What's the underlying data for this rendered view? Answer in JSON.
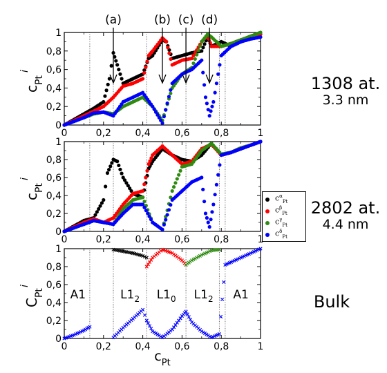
{
  "chart_data": [
    {
      "type": "scatter",
      "panel": "nanoparticle_1308",
      "ylabel": "c^i_Pt",
      "xlim": [
        0,
        1
      ],
      "ylim": [
        0,
        1
      ],
      "xticks": [
        "0",
        "0,2",
        "0,4",
        "0,6",
        "0,8",
        "1"
      ],
      "yticks": [
        "0",
        "0,2",
        "0,4",
        "0,6",
        "0,8",
        "1"
      ],
      "annotations": [
        "(a)",
        "(b)",
        "(c)",
        "(d)"
      ],
      "annotation_x": [
        0.25,
        0.5,
        0.62,
        0.74
      ],
      "side_label": [
        "1308 at.",
        "3.3 nm"
      ],
      "series": [
        {
          "name": "α",
          "color": "#000000",
          "x": [
            0.0,
            0.05,
            0.1,
            0.15,
            0.2,
            0.23,
            0.25,
            0.27,
            0.3,
            0.35,
            0.4,
            0.43,
            0.45,
            0.5,
            0.52,
            0.55,
            0.6,
            0.65,
            0.7,
            0.73,
            0.75,
            0.8,
            0.85,
            0.9,
            0.95,
            1.0
          ],
          "y": [
            0.0,
            0.06,
            0.12,
            0.18,
            0.25,
            0.5,
            0.78,
            0.65,
            0.45,
            0.5,
            0.55,
            0.72,
            0.75,
            0.92,
            0.9,
            0.72,
            0.75,
            0.78,
            0.8,
            0.95,
            0.85,
            0.9,
            0.85,
            0.9,
            0.95,
            0.98
          ]
        },
        {
          "name": "β",
          "color": "#ff0000",
          "x": [
            0.0,
            0.05,
            0.1,
            0.15,
            0.2,
            0.25,
            0.3,
            0.35,
            0.4,
            0.43,
            0.45,
            0.5,
            0.52,
            0.55,
            0.6,
            0.65,
            0.7,
            0.73,
            0.75,
            0.8,
            0.85,
            0.9,
            0.95,
            1.0
          ],
          "y": [
            0.0,
            0.05,
            0.1,
            0.15,
            0.2,
            0.3,
            0.42,
            0.45,
            0.5,
            0.75,
            0.8,
            0.94,
            0.9,
            0.65,
            0.7,
            0.72,
            0.9,
            0.97,
            0.85,
            0.85,
            0.88,
            0.92,
            0.95,
            0.98
          ]
        },
        {
          "name": "γ",
          "color": "#2e8b10",
          "x": [
            0.0,
            0.05,
            0.1,
            0.15,
            0.2,
            0.25,
            0.3,
            0.35,
            0.4,
            0.45,
            0.5,
            0.55,
            0.6,
            0.65,
            0.7,
            0.73,
            0.75,
            0.8,
            0.85,
            0.9,
            0.95,
            1.0
          ],
          "y": [
            0.0,
            0.04,
            0.08,
            0.12,
            0.14,
            0.12,
            0.2,
            0.25,
            0.3,
            0.2,
            0.05,
            0.4,
            0.55,
            0.62,
            0.9,
            0.98,
            0.95,
            0.85,
            0.88,
            0.92,
            0.96,
            1.0
          ]
        },
        {
          "name": "δ",
          "color": "#0000ff",
          "x": [
            0.0,
            0.05,
            0.1,
            0.15,
            0.2,
            0.25,
            0.3,
            0.35,
            0.4,
            0.45,
            0.5,
            0.55,
            0.6,
            0.65,
            0.7,
            0.72,
            0.74,
            0.76,
            0.8,
            0.85,
            0.9,
            0.95,
            1.0
          ],
          "y": [
            0.0,
            0.04,
            0.08,
            0.13,
            0.14,
            0.1,
            0.25,
            0.3,
            0.35,
            0.2,
            0.02,
            0.45,
            0.55,
            0.6,
            0.7,
            0.3,
            0.1,
            0.25,
            0.75,
            0.85,
            0.9,
            0.93,
            0.95
          ]
        }
      ]
    },
    {
      "type": "scatter",
      "panel": "nanoparticle_2802",
      "ylabel": "c^i_Pt",
      "xlim": [
        0,
        1
      ],
      "ylim": [
        0,
        1
      ],
      "xticks": [
        "0",
        "0,2",
        "0,4",
        "0,6",
        "0,8",
        "1"
      ],
      "yticks": [
        "0",
        "0,2",
        "0,4",
        "0,6",
        "0,8",
        "1"
      ],
      "side_label": [
        "2802 at.",
        "4.4 nm"
      ],
      "legend": [
        "c^α_Pt",
        "c^β_Pt",
        "c^γ_Pt",
        "c^δ_Pt"
      ],
      "series": [
        {
          "name": "α",
          "color": "#000000",
          "x": [
            0.0,
            0.05,
            0.1,
            0.15,
            0.2,
            0.22,
            0.25,
            0.27,
            0.3,
            0.35,
            0.4,
            0.43,
            0.45,
            0.5,
            0.55,
            0.6,
            0.65,
            0.7,
            0.75,
            0.8,
            0.85,
            0.9,
            0.95,
            1.0
          ],
          "y": [
            0.0,
            0.06,
            0.12,
            0.15,
            0.35,
            0.65,
            0.8,
            0.78,
            0.6,
            0.42,
            0.38,
            0.7,
            0.78,
            0.92,
            0.85,
            0.8,
            0.78,
            0.85,
            0.98,
            0.85,
            0.88,
            0.92,
            0.96,
            1.0
          ]
        },
        {
          "name": "β",
          "color": "#ff0000",
          "x": [
            0.0,
            0.05,
            0.1,
            0.15,
            0.2,
            0.25,
            0.3,
            0.35,
            0.4,
            0.43,
            0.45,
            0.5,
            0.55,
            0.6,
            0.65,
            0.7,
            0.75,
            0.8,
            0.85,
            0.9,
            0.95,
            1.0
          ],
          "y": [
            0.0,
            0.05,
            0.1,
            0.14,
            0.1,
            0.15,
            0.3,
            0.42,
            0.45,
            0.75,
            0.85,
            0.95,
            0.85,
            0.75,
            0.78,
            0.92,
            0.97,
            0.85,
            0.88,
            0.93,
            0.96,
            1.0
          ]
        },
        {
          "name": "γ",
          "color": "#2e8b10",
          "x": [
            0.0,
            0.05,
            0.1,
            0.15,
            0.2,
            0.25,
            0.3,
            0.35,
            0.4,
            0.45,
            0.5,
            0.55,
            0.6,
            0.65,
            0.7,
            0.75,
            0.8,
            0.85,
            0.9,
            0.95,
            1.0
          ],
          "y": [
            0.0,
            0.04,
            0.08,
            0.12,
            0.1,
            0.08,
            0.25,
            0.35,
            0.38,
            0.1,
            0.02,
            0.45,
            0.72,
            0.75,
            0.9,
            0.98,
            0.86,
            0.88,
            0.93,
            0.96,
            1.0
          ]
        },
        {
          "name": "δ",
          "color": "#0000ff",
          "x": [
            0.0,
            0.05,
            0.1,
            0.15,
            0.2,
            0.25,
            0.3,
            0.35,
            0.4,
            0.45,
            0.5,
            0.55,
            0.6,
            0.65,
            0.7,
            0.72,
            0.74,
            0.76,
            0.8,
            0.85,
            0.9,
            0.95,
            1.0
          ],
          "y": [
            0.0,
            0.04,
            0.08,
            0.12,
            0.1,
            0.08,
            0.2,
            0.3,
            0.3,
            0.1,
            0.02,
            0.35,
            0.45,
            0.55,
            0.6,
            0.2,
            0.05,
            0.3,
            0.85,
            0.88,
            0.92,
            0.96,
            1.0
          ]
        }
      ]
    },
    {
      "type": "scatter",
      "panel": "bulk",
      "xlabel": "c_Pt",
      "ylabel": "C^i_Pt",
      "xlim": [
        0,
        1
      ],
      "ylim": [
        0,
        1
      ],
      "xticks": [
        "0",
        "0,2",
        "0,4",
        "0,6",
        "0,8",
        "1"
      ],
      "yticks": [
        "0",
        "0,2",
        "0,4",
        "0,6",
        "0,8",
        "1"
      ],
      "phase_labels": [
        "A1",
        "L1",
        "L1",
        "L1",
        "A1"
      ],
      "phase_subscripts": [
        "",
        "2",
        "0",
        "2",
        ""
      ],
      "phase_x": [
        0.07,
        0.335,
        0.52,
        0.71,
        0.9
      ],
      "side_label": [
        "Bulk"
      ],
      "boundaries": [
        0.13,
        0.25,
        0.42,
        0.62,
        0.79,
        0.82
      ],
      "series": [
        {
          "name": "α",
          "color": "#000000",
          "x": [
            0.25,
            0.3,
            0.35,
            0.4,
            0.42
          ],
          "y": [
            0.99,
            0.97,
            0.95,
            0.92,
            0.9
          ]
        },
        {
          "name": "β",
          "color": "#ff0000",
          "x": [
            0.42,
            0.45,
            0.5,
            0.55,
            0.6,
            0.62
          ],
          "y": [
            0.8,
            0.9,
            0.99,
            0.95,
            0.87,
            0.82
          ]
        },
        {
          "name": "γ",
          "color": "#2e8b10",
          "x": [
            0.62,
            0.65,
            0.7,
            0.75,
            0.79
          ],
          "y": [
            0.82,
            0.87,
            0.93,
            0.98,
            0.99
          ]
        },
        {
          "name": "δ",
          "color": "#0000ff",
          "x": [
            0.0,
            0.05,
            0.1,
            0.13,
            0.25,
            0.3,
            0.35,
            0.4,
            0.42,
            0.45,
            0.5,
            0.55,
            0.6,
            0.62,
            0.65,
            0.7,
            0.75,
            0.79,
            0.82,
            0.85,
            0.9,
            0.95,
            1.0
          ],
          "y": [
            0.0,
            0.04,
            0.09,
            0.13,
            0.01,
            0.12,
            0.22,
            0.32,
            0.2,
            0.08,
            0.01,
            0.1,
            0.25,
            0.3,
            0.18,
            0.08,
            0.01,
            0.05,
            0.82,
            0.85,
            0.9,
            0.95,
            1.0
          ]
        }
      ]
    }
  ],
  "labels": {
    "panel1_big": "1308 at.",
    "panel1_small": "3.3 nm",
    "panel2_big": "2802 at.",
    "panel2_small": "4.4 nm",
    "panel3_big": "Bulk",
    "xlabel_main": "c",
    "xlabel_sub": "Pt"
  },
  "legend_items": [
    {
      "base": "c",
      "sup": "α",
      "sub": "Pt",
      "color": "#000000"
    },
    {
      "base": "c",
      "sup": "β",
      "sub": "Pt",
      "color": "#ff0000"
    },
    {
      "base": "c",
      "sup": "γ",
      "sub": "Pt",
      "color": "#2e8b10"
    },
    {
      "base": "c",
      "sup": "δ",
      "sub": "Pt",
      "color": "#0000ff"
    }
  ]
}
